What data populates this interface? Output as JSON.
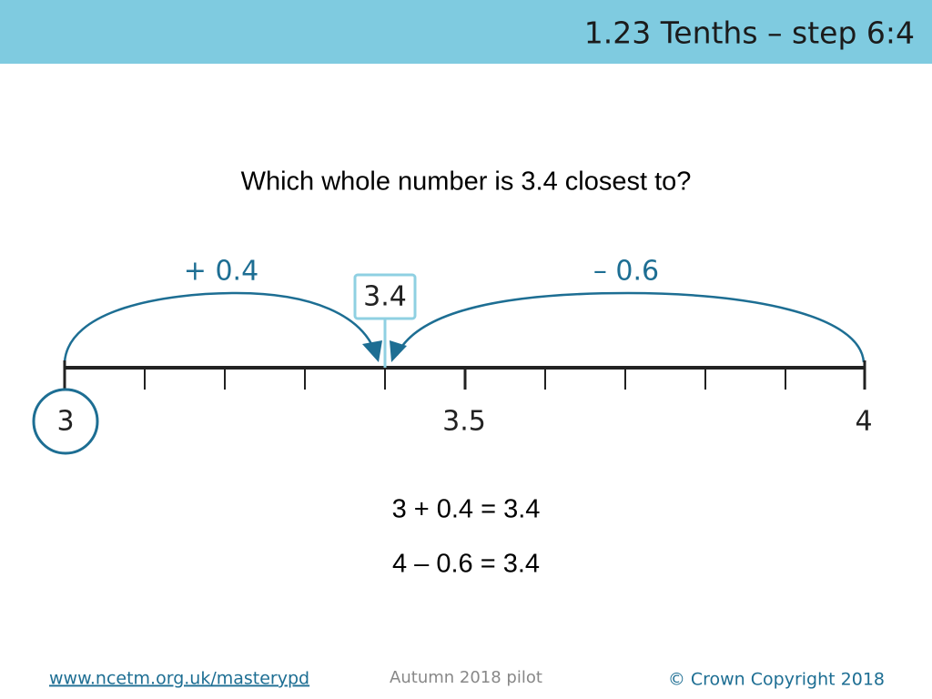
{
  "header": {
    "title": "1.23 Tenths – step 6:4"
  },
  "question": "Which whole number is 3.4 closest to?",
  "number_line": {
    "start_label": "3",
    "mid_label": "3.5",
    "end_label": "4",
    "marker_label": "3.4",
    "left_jump_label": "+ 0.4",
    "right_jump_label": "– 0.6"
  },
  "equations": [
    "3 + 0.4 = 3.4",
    "4 – 0.6 = 3.4"
  ],
  "footer": {
    "link": "www.ncetm.org.uk/masterypd",
    "center": "Autumn 2018 pilot",
    "right": "© Crown Copyright 2018"
  }
}
